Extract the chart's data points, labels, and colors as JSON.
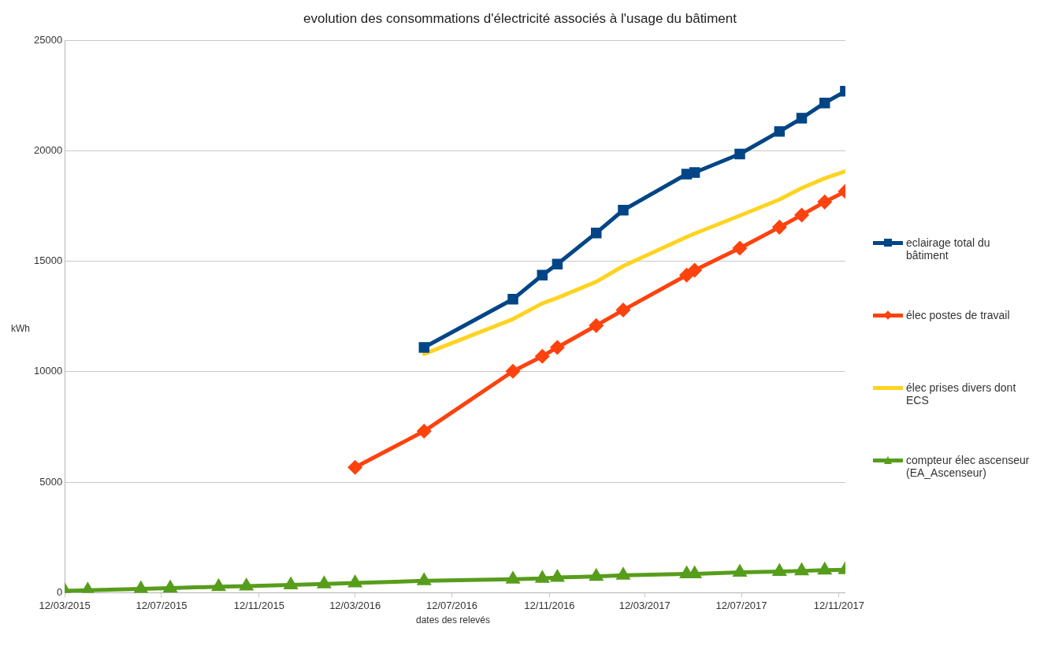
{
  "chart_data": {
    "type": "line",
    "title": "evolution des consommations d'électricité associés à l'usage du bâtiment",
    "xlabel": "dates des relevés",
    "ylabel": "kWh",
    "x": [
      "2015-03-12",
      "2015-04-10",
      "2015-06-16",
      "2015-07-23",
      "2015-09-22",
      "2015-10-27",
      "2015-12-22",
      "2016-02-02",
      "2016-03-12",
      "2016-06-07",
      "2016-09-27",
      "2016-11-03",
      "2016-11-22",
      "2017-01-10",
      "2017-02-13",
      "2017-05-04",
      "2017-05-14",
      "2017-07-10",
      "2017-08-29",
      "2017-09-26",
      "2017-10-25",
      "2017-11-20"
    ],
    "series": [
      {
        "name": "eclairage total du bâtiment",
        "color": "#004586",
        "marker": "square",
        "values": [
          null,
          null,
          null,
          null,
          null,
          null,
          null,
          null,
          null,
          11100,
          13280,
          14370,
          14870,
          16280,
          17310,
          18940,
          19010,
          19850,
          20870,
          21470,
          22160,
          22690
        ]
      },
      {
        "name": "élec postes de travail",
        "color": "#ff420e",
        "marker": "diamond",
        "values": [
          null,
          null,
          null,
          null,
          null,
          null,
          null,
          null,
          5670,
          7310,
          10020,
          10700,
          11100,
          12090,
          12790,
          14370,
          14590,
          15590,
          16540,
          17090,
          17680,
          18160
        ]
      },
      {
        "name": "élec prises divers dont ECS",
        "color": "#ffd320",
        "marker": "none",
        "values": [
          null,
          null,
          null,
          null,
          null,
          null,
          null,
          null,
          null,
          10800,
          12380,
          13090,
          13340,
          14070,
          14780,
          16100,
          16250,
          17060,
          17790,
          18310,
          18750,
          19070
        ]
      },
      {
        "name": "compteur élec ascenseur (EA_Ascenseur)",
        "color": "#579d1c",
        "marker": "triangle",
        "values": [
          90,
          110,
          175,
          210,
          275,
          300,
          350,
          400,
          440,
          540,
          610,
          650,
          690,
          740,
          790,
          850,
          850,
          925,
          960,
          990,
          1025,
          1040
        ]
      }
    ],
    "xlim": [
      "2015-03-12",
      "2017-11-20"
    ],
    "xticks": [
      {
        "value": "2015-03-12",
        "label": "12/03/2015"
      },
      {
        "value": "2015-07-12",
        "label": "12/07/2015"
      },
      {
        "value": "2015-11-12",
        "label": "12/11/2015"
      },
      {
        "value": "2016-03-12",
        "label": "12/03/2016"
      },
      {
        "value": "2016-07-12",
        "label": "12/07/2016"
      },
      {
        "value": "2016-11-12",
        "label": "12/11/2016"
      },
      {
        "value": "2017-03-12",
        "label": "12/03/2017"
      },
      {
        "value": "2017-07-12",
        "label": "12/07/2017"
      },
      {
        "value": "2017-11-12",
        "label": "12/11/2017"
      }
    ],
    "ylim": [
      0,
      25000
    ],
    "yticks": [
      0,
      5000,
      10000,
      15000,
      20000,
      25000
    ],
    "grid": "y",
    "legend": "right",
    "line_style": "solid"
  }
}
